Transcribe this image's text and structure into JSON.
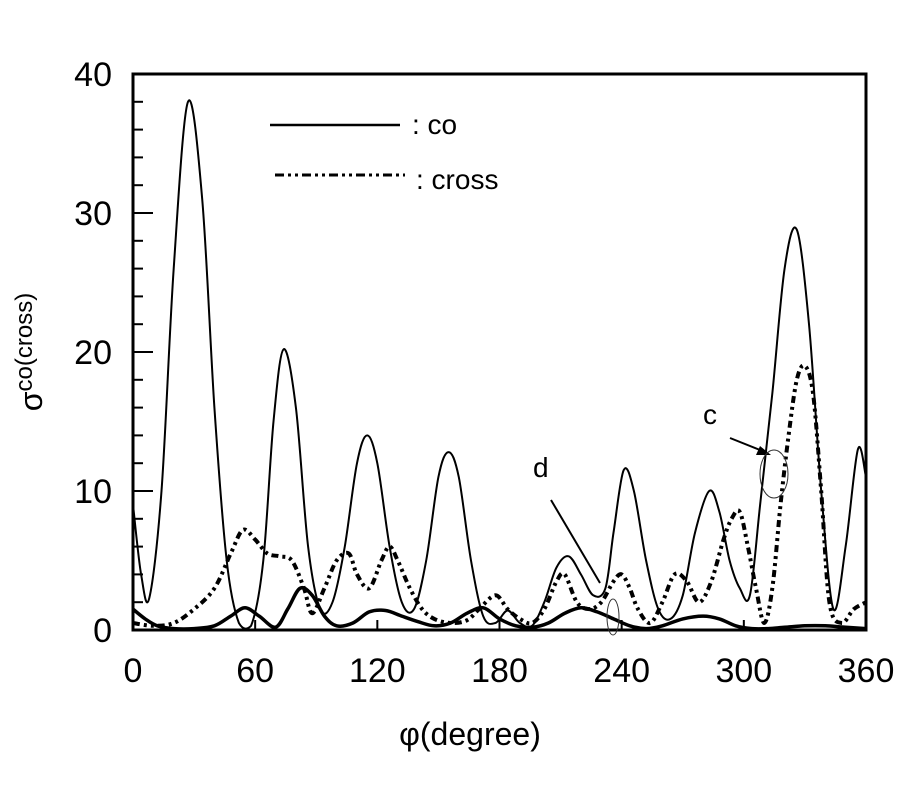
{
  "chart_data": {
    "type": "line",
    "title": "",
    "xlabel": "φ(degree)",
    "ylabel": "σco(cross)",
    "ylabel_main": "σ",
    "ylabel_super": "co(cross)",
    "xlim": [
      0,
      360
    ],
    "ylim": [
      0,
      40
    ],
    "x_ticks": [
      0,
      60,
      120,
      180,
      240,
      300,
      360
    ],
    "y_ticks": [
      0,
      10,
      20,
      30,
      40
    ],
    "grid": false,
    "legend_position": "upper center",
    "legend": [
      {
        "label": ": co",
        "style": "solid"
      },
      {
        "label": ": cross",
        "style": "dash-dot-dot"
      }
    ],
    "series": [
      {
        "name": "co",
        "style": "solid",
        "x": [
          0,
          4,
          8,
          14,
          20,
          27,
          34,
          40,
          46,
          52,
          58,
          64,
          69,
          74,
          80,
          86,
          92,
          98,
          104,
          110,
          115,
          120,
          126,
          132,
          138,
          144,
          150,
          155,
          160,
          166,
          172,
          178,
          184,
          190,
          196,
          202,
          208,
          214,
          220,
          226,
          232,
          236,
          241,
          246,
          252,
          258,
          264,
          270,
          276,
          283,
          288,
          293,
          298,
          303,
          308,
          314,
          320,
          326,
          332,
          338,
          344,
          350,
          356,
          360
        ],
        "y": [
          9,
          4,
          2.3,
          10,
          26,
          38,
          31,
          16,
          5,
          0.5,
          0.3,
          5,
          15,
          20.2,
          16,
          6,
          1.5,
          2,
          6,
          12,
          14,
          12,
          6,
          2,
          1.5,
          5,
          11,
          12.8,
          11,
          5,
          1,
          0.5,
          1.4,
          0.5,
          0.3,
          2,
          4.5,
          5.3,
          4,
          2.5,
          3,
          7,
          11.5,
          10,
          5,
          1.5,
          0.8,
          2.5,
          7,
          10,
          8.5,
          5,
          3,
          2.5,
          9,
          17,
          26,
          28.8,
          22,
          10,
          1.5,
          6,
          13,
          11
        ]
      },
      {
        "name": "cross",
        "style": "dash-dot-dot",
        "x": [
          0,
          10,
          20,
          30,
          40,
          48,
          54,
          60,
          66,
          72,
          78,
          84,
          88,
          94,
          100,
          106,
          110,
          116,
          122,
          126,
          130,
          136,
          142,
          148,
          156,
          164,
          170,
          178,
          184,
          190,
          196,
          202,
          208,
          212,
          218,
          224,
          230,
          236,
          240,
          244,
          248,
          254,
          260,
          266,
          272,
          278,
          284,
          290,
          294,
          298,
          302,
          306,
          310,
          314,
          318,
          322,
          326,
          330,
          334,
          338,
          342,
          348,
          354,
          360
        ],
        "y": [
          0.5,
          0.3,
          0.5,
          1.5,
          3,
          5.5,
          7.2,
          6.5,
          5.5,
          5.3,
          5,
          3,
          1.2,
          3,
          5,
          5.5,
          4,
          3,
          5,
          6,
          5,
          3,
          1.5,
          0.8,
          0.5,
          0.7,
          1.5,
          2.5,
          1.5,
          0.8,
          0.5,
          1.5,
          3.5,
          4,
          2,
          1.5,
          2,
          3.5,
          4,
          3,
          1.5,
          0.5,
          2,
          4,
          3.5,
          2,
          3.5,
          6.5,
          8,
          8.5,
          6,
          3,
          0.5,
          3,
          9,
          14,
          18,
          19,
          17,
          10,
          2,
          0.5,
          1.5,
          2
        ]
      },
      {
        "name": "co (bold, low)",
        "style": "solid-bold",
        "x": [
          0,
          6,
          12,
          20,
          30,
          40,
          48,
          55,
          62,
          70,
          76,
          82,
          88,
          94,
          100,
          108,
          116,
          124,
          132,
          140,
          148,
          156,
          164,
          172,
          180,
          188,
          196,
          204,
          212,
          220,
          228,
          236,
          244,
          252,
          260,
          270,
          280,
          288,
          296,
          304,
          312,
          320,
          330,
          340,
          350,
          360
        ],
        "y": [
          1.5,
          0.8,
          0.3,
          0.1,
          0.1,
          0.3,
          1,
          1.6,
          1,
          0.2,
          1.5,
          3,
          2.5,
          1,
          0.3,
          0.5,
          1.3,
          1.4,
          1,
          0.6,
          0.3,
          0.5,
          1.2,
          1.6,
          0.8,
          0.3,
          0.2,
          0.5,
          1.2,
          1.6,
          1.3,
          0.8,
          0.3,
          0.1,
          0.3,
          0.8,
          1,
          0.8,
          0.3,
          0.1,
          0.1,
          0.2,
          0.3,
          0.3,
          0.2,
          0.1
        ]
      }
    ],
    "annotations": [
      {
        "label": "c",
        "x_deg": 313,
        "y_val": 11,
        "note": "arrow pointing to ellipse around crossing near φ≈313°"
      },
      {
        "label": "d",
        "x_deg": 232,
        "y_val": 2,
        "note": "arrow line pointing to small ellipse near φ≈236°"
      }
    ]
  }
}
